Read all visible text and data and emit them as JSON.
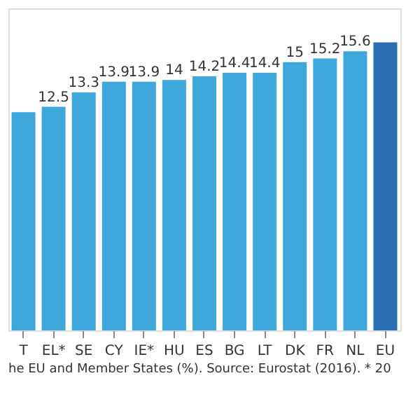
{
  "chart_data": {
    "type": "bar",
    "categories": [
      "T",
      "EL*",
      "SE",
      "CY",
      "IE*",
      "HU",
      "ES",
      "BG",
      "LT",
      "DK",
      "FR",
      "NL",
      "EU"
    ],
    "values": [
      12.2,
      12.5,
      13.3,
      13.9,
      13.9,
      14,
      14.2,
      14.4,
      14.4,
      15,
      15.2,
      15.6,
      16.1
    ],
    "value_labels": [
      null,
      "12.5",
      "13.3",
      "13.9",
      "13.9",
      "14",
      "14.2",
      "14.4",
      "14.4",
      "15",
      "15.2",
      "15.6",
      null
    ],
    "colors": [
      "#3ea8dd",
      "#3ea8dd",
      "#3ea8dd",
      "#3ea8dd",
      "#3ea8dd",
      "#3ea8dd",
      "#3ea8dd",
      "#3ea8dd",
      "#3ea8dd",
      "#3ea8dd",
      "#3ea8dd",
      "#3ea8dd",
      "#2a6fb0"
    ],
    "tick_labels": "x",
    "annotations": [
      "he EU and Member States (%). Source: Eurostat (2016). * 20"
    ]
  }
}
